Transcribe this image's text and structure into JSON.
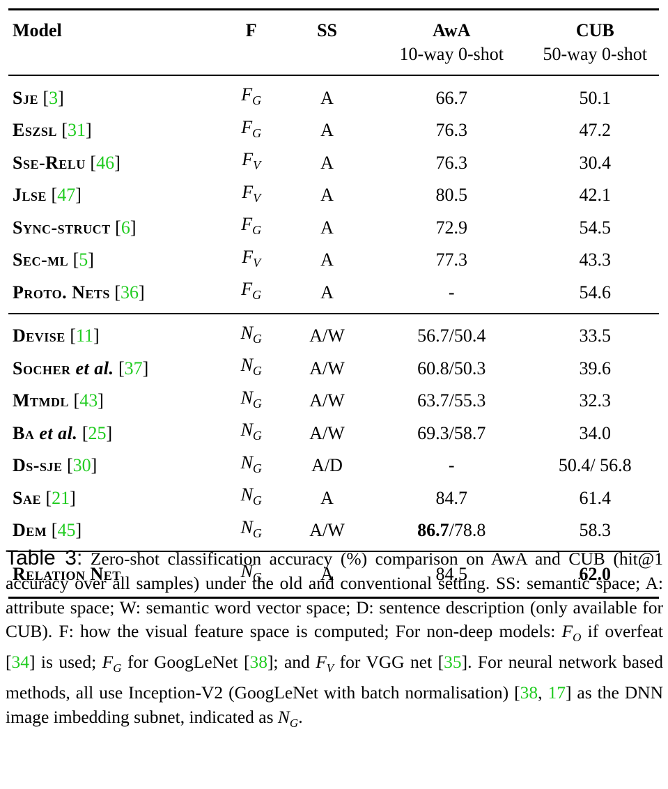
{
  "table": {
    "headers": {
      "model": "Model",
      "f": "F",
      "ss": "SS",
      "awa": "AwA",
      "awa_sub": "10-way 0-shot",
      "cub": "CUB",
      "cub_sub": "50-way 0-shot"
    },
    "group1": [
      {
        "model": "Sje",
        "cite": "3",
        "f": "F",
        "f_sub": "G",
        "ss": "A",
        "awa": "66.7",
        "cub": "50.1"
      },
      {
        "model": "Eszsl",
        "cite": "31",
        "f": "F",
        "f_sub": "G",
        "ss": "A",
        "awa": "76.3",
        "cub": "47.2"
      },
      {
        "model": "Sse-Relu",
        "cite": "46",
        "f": "F",
        "f_sub": "V",
        "ss": "A",
        "awa": "76.3",
        "cub": "30.4"
      },
      {
        "model": "Jlse",
        "cite": "47",
        "f": "F",
        "f_sub": "V",
        "ss": "A",
        "awa": "80.5",
        "cub": "42.1"
      },
      {
        "model": "Sync-struct",
        "cite": "6",
        "f": "F",
        "f_sub": "G",
        "ss": "A",
        "awa": "72.9",
        "cub": "54.5"
      },
      {
        "model": "Sec-ml",
        "cite": "5",
        "f": "F",
        "f_sub": "V",
        "ss": "A",
        "awa": "77.3",
        "cub": "43.3"
      },
      {
        "model": "Proto. Nets",
        "cite": "36",
        "f": "F",
        "f_sub": "G",
        "ss": "A",
        "awa": "-",
        "cub": "54.6"
      }
    ],
    "group2": [
      {
        "model": "Devise",
        "model_it": "",
        "cite": "11",
        "f": "N",
        "f_sub": "G",
        "ss": "A/W",
        "awa": "56.7/50.4",
        "awa_bold": "",
        "awa_rest": "",
        "cub": "33.5"
      },
      {
        "model": "Socher ",
        "model_it": "et al.",
        "cite": "37",
        "f": "N",
        "f_sub": "G",
        "ss": "A/W",
        "awa": "60.8/50.3",
        "awa_bold": "",
        "awa_rest": "",
        "cub": "39.6"
      },
      {
        "model": "Mtmdl",
        "model_it": "",
        "cite": "43",
        "f": "N",
        "f_sub": "G",
        "ss": "A/W",
        "awa": "63.7/55.3",
        "awa_bold": "",
        "awa_rest": "",
        "cub": "32.3"
      },
      {
        "model": "Ba ",
        "model_it": "et al.",
        "cite": "25",
        "f": "N",
        "f_sub": "G",
        "ss": "A/W",
        "awa": "69.3/58.7",
        "awa_bold": "",
        "awa_rest": "",
        "cub": "34.0"
      },
      {
        "model": "Ds-sje",
        "model_it": "",
        "cite": "30",
        "f": "N",
        "f_sub": "G",
        "ss": "A/D",
        "awa": "-",
        "awa_bold": "",
        "awa_rest": "",
        "cub": "50.4/ 56.8"
      },
      {
        "model": "Sae",
        "model_it": "",
        "cite": "21",
        "f": "N",
        "f_sub": "G",
        "ss": "A",
        "awa": "84.7",
        "awa_bold": "",
        "awa_rest": "",
        "cub": "61.4"
      },
      {
        "model": "Dem",
        "model_it": "",
        "cite": "45",
        "f": "N",
        "f_sub": "G",
        "ss": "A/W",
        "awa": "",
        "awa_bold": "86.7",
        "awa_rest": "/78.8",
        "cub": "58.3"
      }
    ],
    "final": {
      "model": "Relation Net",
      "f": "N",
      "f_sub": "G",
      "ss": "A",
      "awa": "84.5",
      "cub": "62.0"
    }
  },
  "caption": {
    "label": "Table 3:",
    "p1": " Zero-shot classification accuracy (%) comparison on AwA and CUB (hit@1 accuracy over all samples) under the old and conventional setting. SS: semantic space; A: attribute space; W: semantic word vector space; D: sentence description (only available for CUB). F: how the visual feature space is computed; For non-deep models: ",
    "fo": "F",
    "fo_sub": "O",
    "p2": " if overfeat [",
    "c34": "34",
    "p3": "] is used; ",
    "fg": "F",
    "fg_sub": "G",
    "p4": " for GoogLeNet [",
    "c38a": "38",
    "p5": "]; and ",
    "fv": "F",
    "fv_sub": "V",
    "p6": " for VGG net [",
    "c35": "35",
    "p7": "]. For neural network based methods, all use Inception-V2 (GoogLeNet with batch normalisation) [",
    "c38b": "38",
    "sep": ", ",
    "c17": "17",
    "p8": "] as the DNN image imbedding subnet, indicated as ",
    "ng": "N",
    "ng_sub": "G",
    "p9": "."
  },
  "colors": {
    "citation": "#22cc22",
    "text": "#000000"
  }
}
